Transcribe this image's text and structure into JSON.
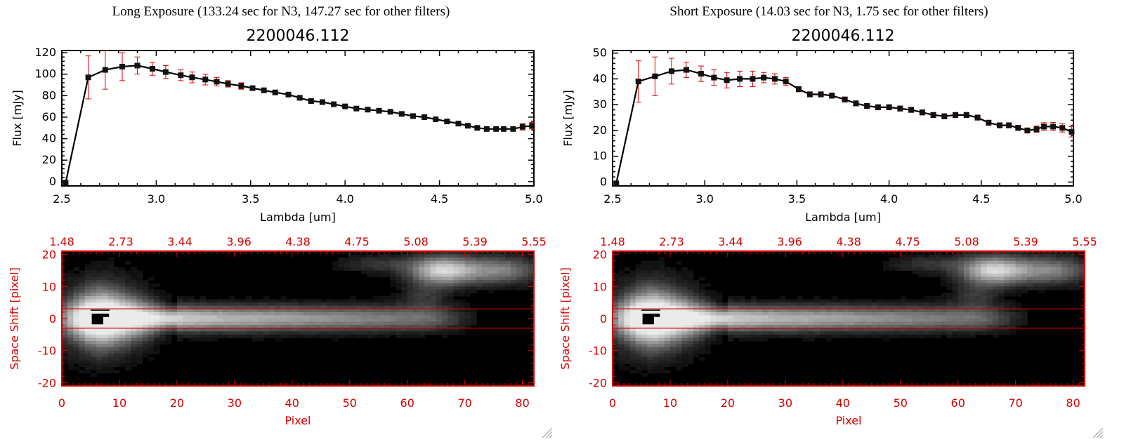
{
  "colors": {
    "error_bars": "#e00000",
    "image_axes": "#d40000",
    "line": "#000000"
  },
  "panels": [
    {
      "header": "Long Exposure (133.24 sec for N3, 147.27 sec for other filters)",
      "resize_icon": "resize-grip-icon"
    },
    {
      "header": "Short Exposure (14.03 sec for N3, 1.75 sec for other filters)",
      "resize_icon": "resize-grip-icon"
    }
  ],
  "chart_data": [
    {
      "type": "line",
      "title": "2200046.112",
      "xlabel": "Lambda [um]",
      "ylabel": "Flux [mJy]",
      "xlim": [
        2.5,
        5.0
      ],
      "ylim": [
        -4,
        122
      ],
      "xticks": [
        "2.5",
        "3.0",
        "3.5",
        "4.0",
        "4.5",
        "5.0"
      ],
      "yticks": [
        "0",
        "20",
        "40",
        "60",
        "80",
        "100",
        "120"
      ],
      "x": [
        2.52,
        2.64,
        2.73,
        2.82,
        2.9,
        2.98,
        3.05,
        3.13,
        3.19,
        3.26,
        3.32,
        3.38,
        3.45,
        3.51,
        3.57,
        3.63,
        3.7,
        3.76,
        3.82,
        3.88,
        3.94,
        4.0,
        4.06,
        4.12,
        4.18,
        4.24,
        4.3,
        4.36,
        4.42,
        4.48,
        4.54,
        4.6,
        4.65,
        4.7,
        4.75,
        4.8,
        4.84,
        4.89,
        4.94,
        4.99
      ],
      "y": [
        -1,
        97,
        104,
        107,
        108,
        105,
        102,
        99,
        97,
        95,
        93,
        91,
        89,
        87,
        85,
        83,
        81,
        78,
        75,
        74,
        72,
        70,
        68,
        67,
        66,
        65,
        63,
        61,
        60,
        58,
        56,
        54,
        52,
        50,
        49,
        49,
        49,
        49,
        51,
        52
      ],
      "yerr": [
        0,
        20,
        18,
        13,
        8,
        6,
        6,
        5,
        5,
        5,
        4,
        3,
        3,
        2,
        2,
        2,
        2,
        2,
        2,
        2,
        1,
        1,
        1,
        1,
        1,
        1,
        1,
        1,
        1,
        1,
        1,
        1,
        1,
        1,
        1,
        1,
        2,
        2,
        3,
        3
      ]
    },
    {
      "type": "line",
      "title": "2200046.112",
      "xlabel": "Lambda [um]",
      "ylabel": "Flux [mJy]",
      "xlim": [
        2.5,
        5.0
      ],
      "ylim": [
        -1.5,
        51
      ],
      "xticks": [
        "2.5",
        "3.0",
        "3.5",
        "4.0",
        "4.5",
        "5.0"
      ],
      "yticks": [
        "0",
        "10",
        "20",
        "30",
        "40",
        "50"
      ],
      "x": [
        2.52,
        2.64,
        2.73,
        2.82,
        2.9,
        2.98,
        3.05,
        3.12,
        3.19,
        3.26,
        3.32,
        3.38,
        3.44,
        3.51,
        3.57,
        3.63,
        3.69,
        3.76,
        3.82,
        3.88,
        3.94,
        4.0,
        4.06,
        4.12,
        4.18,
        4.24,
        4.3,
        4.36,
        4.42,
        4.48,
        4.54,
        4.6,
        4.65,
        4.7,
        4.75,
        4.8,
        4.84,
        4.89,
        4.94,
        4.99
      ],
      "y": [
        -0.5,
        39,
        41,
        43,
        43.5,
        42,
        40.5,
        39.5,
        40,
        40,
        40.5,
        40,
        39,
        36,
        34,
        34,
        33.5,
        32,
        30.5,
        29.5,
        29,
        29,
        28.5,
        28,
        27,
        26,
        25.5,
        26,
        26,
        25,
        23,
        22,
        22,
        21,
        20,
        20.5,
        21.5,
        21.5,
        21,
        19.5
      ],
      "yerr": [
        0,
        8,
        7.5,
        5,
        3,
        3,
        3,
        3,
        3,
        3,
        2,
        2,
        1.5,
        1,
        1,
        1,
        1,
        1,
        1,
        1,
        1,
        1,
        1,
        1,
        1,
        1,
        1,
        1,
        1,
        1,
        1,
        1,
        1,
        1,
        1,
        1.2,
        1.5,
        1.6,
        1.6,
        2
      ]
    },
    {
      "type": "heatmap",
      "xlabel": "Pixel",
      "ylabel": "Space Shift [pixel]",
      "xlim": [
        0,
        82
      ],
      "ylim": [
        -21,
        21
      ],
      "xticks": [
        "0",
        "10",
        "20",
        "30",
        "40",
        "50",
        "60",
        "70",
        "80"
      ],
      "yticks": [
        "-20",
        "-10",
        "0",
        "10",
        "20"
      ],
      "top_ticks": [
        "1.48",
        "2.73",
        "3.44",
        "3.96",
        "4.38",
        "4.75",
        "5.08",
        "5.39",
        "5.55"
      ],
      "extraction_window": [
        -3,
        3
      ]
    },
    {
      "type": "heatmap",
      "xlabel": "Pixel",
      "ylabel": "Space Shift [pixel]",
      "xlim": [
        0,
        82
      ],
      "ylim": [
        -21,
        21
      ],
      "xticks": [
        "0",
        "10",
        "20",
        "30",
        "40",
        "50",
        "60",
        "70",
        "80"
      ],
      "yticks": [
        "-20",
        "-10",
        "0",
        "10",
        "20"
      ],
      "top_ticks": [
        "1.48",
        "2.73",
        "3.44",
        "3.96",
        "4.38",
        "4.75",
        "5.08",
        "5.39",
        "5.55"
      ],
      "extraction_window": [
        -3,
        3
      ]
    }
  ]
}
